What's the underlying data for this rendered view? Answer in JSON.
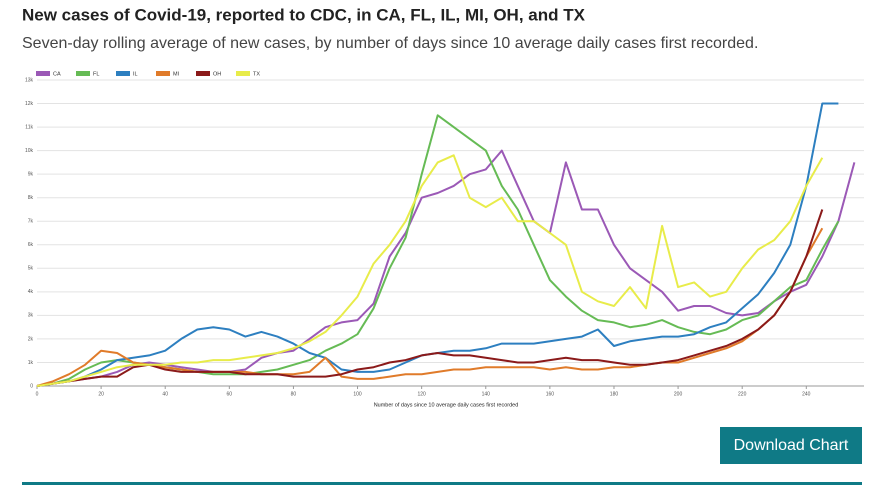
{
  "chart_data": {
    "type": "line",
    "title": "New cases of Covid-19, reported to CDC, in CA, FL, IL, MI, OH, and TX",
    "subtitle": "Seven-day rolling average of new cases, by number of days since 10 average daily cases first recorded.",
    "x_label": "Number of days since 10 average daily cases first recorded",
    "x": [
      0,
      5,
      10,
      15,
      20,
      25,
      30,
      35,
      40,
      45,
      50,
      55,
      60,
      65,
      70,
      75,
      80,
      85,
      90,
      95,
      100,
      105,
      110,
      115,
      120,
      125,
      130,
      135,
      140,
      145,
      150,
      155,
      160,
      165,
      170,
      175,
      180,
      185,
      190,
      195,
      200,
      205,
      210,
      215,
      220,
      225,
      230,
      235,
      240,
      245,
      250,
      255
    ],
    "xlim": [
      0,
      258
    ],
    "xticks": [
      0,
      20,
      40,
      60,
      80,
      100,
      120,
      140,
      160,
      180,
      200,
      220,
      240
    ],
    "ylim": [
      0,
      13000
    ],
    "yticks": [
      0,
      {
        "value": 1000,
        "label": "1k"
      },
      {
        "value": 2000,
        "label": "2k"
      },
      {
        "value": 3000,
        "label": "3k"
      },
      {
        "value": 4000,
        "label": "4k"
      },
      {
        "value": 5000,
        "label": "5k"
      },
      {
        "value": 6000,
        "label": "6k"
      },
      {
        "value": 7000,
        "label": "7k"
      },
      {
        "value": 8000,
        "label": "8k"
      },
      {
        "value": 9000,
        "label": "9k"
      },
      {
        "value": 10000,
        "label": "10k"
      },
      {
        "value": 11000,
        "label": "11k"
      },
      {
        "value": 12000,
        "label": "12k"
      },
      {
        "value": 13000,
        "label": "13k"
      }
    ],
    "grid": true,
    "legend": "top-left",
    "series": [
      {
        "name": "CA",
        "color": "#9b59b6",
        "values": [
          0,
          100,
          200,
          300,
          400,
          600,
          900,
          1000,
          900,
          800,
          700,
          600,
          600,
          700,
          1200,
          1400,
          1500,
          2000,
          2500,
          2700,
          2800,
          3500,
          5500,
          6500,
          8000,
          8200,
          8500,
          9000,
          9200,
          10000,
          8500,
          7000,
          6500,
          9500,
          7500,
          7500,
          6000,
          5000,
          4500,
          4000,
          3200,
          3400,
          3400,
          3100,
          3000,
          3100,
          3600,
          4000,
          4300,
          5500,
          7000,
          9500
        ]
      },
      {
        "name": "FL",
        "color": "#66bb55",
        "values": [
          0,
          100,
          300,
          700,
          1000,
          1100,
          1000,
          900,
          800,
          700,
          600,
          500,
          500,
          500,
          600,
          700,
          900,
          1100,
          1500,
          1800,
          2200,
          3300,
          5000,
          6300,
          9000,
          11500,
          11000,
          10500,
          10000,
          8500,
          7500,
          6000,
          4500,
          3800,
          3200,
          2800,
          2700,
          2500,
          2600,
          2800,
          2500,
          2300,
          2200,
          2400,
          2800,
          3000,
          3600,
          4200,
          4500,
          5800,
          7000,
          null
        ]
      },
      {
        "name": "IL",
        "color": "#2d7fc0",
        "values": [
          0,
          100,
          200,
          400,
          700,
          1100,
          1200,
          1300,
          1500,
          2000,
          2400,
          2500,
          2400,
          2100,
          2300,
          2100,
          1800,
          1400,
          1200,
          700,
          600,
          600,
          700,
          1000,
          1300,
          1400,
          1500,
          1500,
          1600,
          1800,
          1800,
          1800,
          1900,
          2000,
          2100,
          2400,
          1700,
          1900,
          2000,
          2100,
          2100,
          2200,
          2500,
          2700,
          3300,
          3900,
          4800,
          6000,
          8500,
          12000,
          12000,
          null
        ]
      },
      {
        "name": "MI",
        "color": "#e07b2a",
        "values": [
          0,
          200,
          500,
          900,
          1500,
          1400,
          1000,
          900,
          800,
          700,
          600,
          600,
          600,
          600,
          500,
          500,
          500,
          600,
          1200,
          400,
          300,
          300,
          400,
          500,
          500,
          600,
          700,
          700,
          800,
          800,
          800,
          800,
          700,
          800,
          700,
          700,
          800,
          800,
          900,
          1000,
          1000,
          1200,
          1400,
          1600,
          1900,
          2400,
          3000,
          4000,
          5500,
          6700,
          null,
          null
        ]
      },
      {
        "name": "OH",
        "color": "#8b1a1a",
        "values": [
          0,
          100,
          200,
          300,
          400,
          400,
          800,
          900,
          700,
          600,
          600,
          600,
          600,
          500,
          500,
          500,
          400,
          400,
          400,
          500,
          700,
          800,
          1000,
          1100,
          1300,
          1400,
          1300,
          1300,
          1200,
          1100,
          1000,
          1000,
          1100,
          1200,
          1100,
          1100,
          1000,
          900,
          900,
          1000,
          1100,
          1300,
          1500,
          1700,
          2000,
          2400,
          3000,
          4000,
          5500,
          7500,
          null,
          null
        ]
      },
      {
        "name": "TX",
        "color": "#e8ec4a",
        "values": [
          0,
          100,
          200,
          400,
          600,
          800,
          900,
          900,
          900,
          1000,
          1000,
          1100,
          1100,
          1200,
          1300,
          1400,
          1600,
          1900,
          2300,
          3000,
          3800,
          5200,
          6000,
          7000,
          8500,
          9500,
          9800,
          8000,
          7600,
          8000,
          7000,
          7000,
          6500,
          6000,
          4000,
          3600,
          3400,
          4200,
          3300,
          6800,
          4200,
          4400,
          3800,
          4000,
          5000,
          5800,
          6200,
          7000,
          8500,
          9700,
          null,
          null
        ]
      }
    ]
  },
  "button": "Download Chart"
}
